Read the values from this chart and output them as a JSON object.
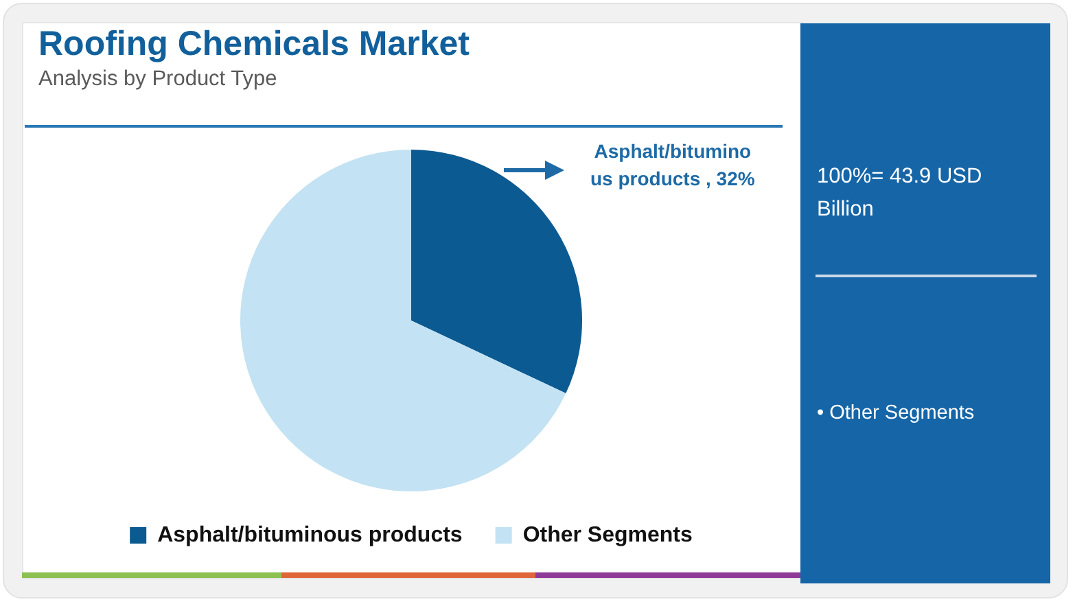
{
  "chart_data": {
    "type": "pie",
    "title": "Roofing Chemicals Market",
    "subtitle": "Analysis by Product Type",
    "categories": [
      "Asphalt/bituminous products",
      "Other Segments"
    ],
    "values": [
      32,
      68
    ],
    "colors": [
      "#0b5a91",
      "#c3e2f3"
    ],
    "value_labels": [
      "Asphalt/bituminous products , 32%",
      null
    ],
    "legend": "bottom",
    "annotations": [
      "100%= 43.9 USD Billion",
      "• Other Segments"
    ]
  }
}
